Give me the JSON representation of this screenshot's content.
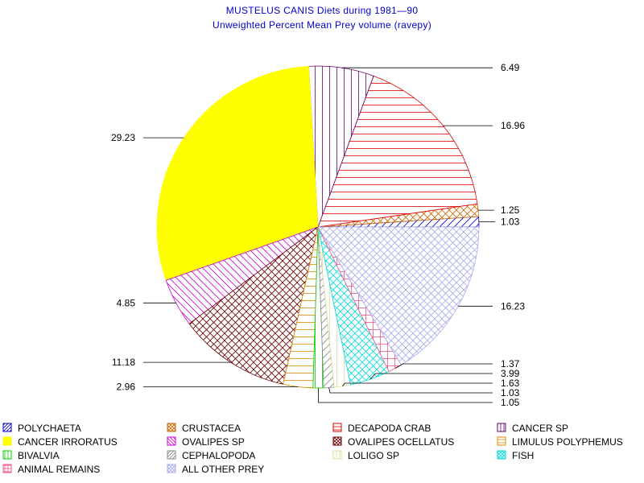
{
  "chart_data": {
    "type": "pie",
    "title": "MUSTELUS CANIS Diets during 1981—90",
    "subtitle": "Unweighted Percent Mean Prey volume (ravepy)",
    "slices": [
      {
        "name": "POLYCHAETA",
        "value": 1.03,
        "label": "1.03",
        "color": "#0000cc",
        "pattern": "diag-fwd"
      },
      {
        "name": "CRUSTACEA",
        "value": 1.25,
        "label": "1.25",
        "color": "#cc6600",
        "pattern": "crosshatch-diag"
      },
      {
        "name": "DECAPODA CRAB",
        "value": 16.96,
        "label": "16.96",
        "color": "#dd0000",
        "pattern": "horizontal"
      },
      {
        "name": "CANCER SP",
        "value": 6.49,
        "label": "6.49",
        "color": "#660066",
        "pattern": "vertical"
      },
      {
        "name": "CANCER IRRORATUS",
        "value": 29.23,
        "label": "29.23",
        "color": "#ffff00",
        "pattern": "solid"
      },
      {
        "name": "OVALIPES SP",
        "value": 4.85,
        "label": "4.85",
        "color": "#cc00cc",
        "pattern": "diag-back"
      },
      {
        "name": "OVALIPES OCELLATUS",
        "value": 11.18,
        "label": "11.18",
        "color": "#660000",
        "pattern": "crosshatch-diag"
      },
      {
        "name": "LIMULUS POLYPHEMUS",
        "value": 2.96,
        "label": "2.96",
        "color": "#dd8800",
        "pattern": "horizontal"
      },
      {
        "name": "BIVALVIA",
        "value": 1.05,
        "label": "1.05",
        "color": "#00cc00",
        "pattern": "vertical"
      },
      {
        "name": "CEPHALOPODA",
        "value": 1.03,
        "label": "1.03",
        "color": "#888888",
        "pattern": "diag-fwd"
      },
      {
        "name": "LOLIGO SP",
        "value": 1.63,
        "label": "1.63",
        "color": "#dddd99",
        "pattern": "vertical"
      },
      {
        "name": "FISH",
        "value": 3.99,
        "label": "3.99",
        "color": "#00dddd",
        "pattern": "crosshatch-diag"
      },
      {
        "name": "ANIMAL REMAINS",
        "value": 1.37,
        "label": "1.37",
        "color": "#ee5588",
        "pattern": "crosshatch-square"
      },
      {
        "name": "ALL OTHER PREY",
        "value": 16.23,
        "label": "16.23",
        "color": "#aaaaee",
        "pattern": "crosshatch-diag"
      }
    ],
    "legend_placement": "bottom",
    "legend_order": [
      "POLYCHAETA",
      "CRUSTACEA",
      "DECAPODA CRAB",
      "CANCER SP",
      "CANCER IRRORATUS",
      "OVALIPES SP",
      "OVALIPES OCELLATUS",
      "LIMULUS POLYPHEMUS",
      "BIVALVIA",
      "CEPHALOPODA",
      "LOLIGO SP",
      "FISH",
      "ANIMAL REMAINS",
      "ALL OTHER PREY"
    ],
    "title_color": "#0000cc"
  }
}
